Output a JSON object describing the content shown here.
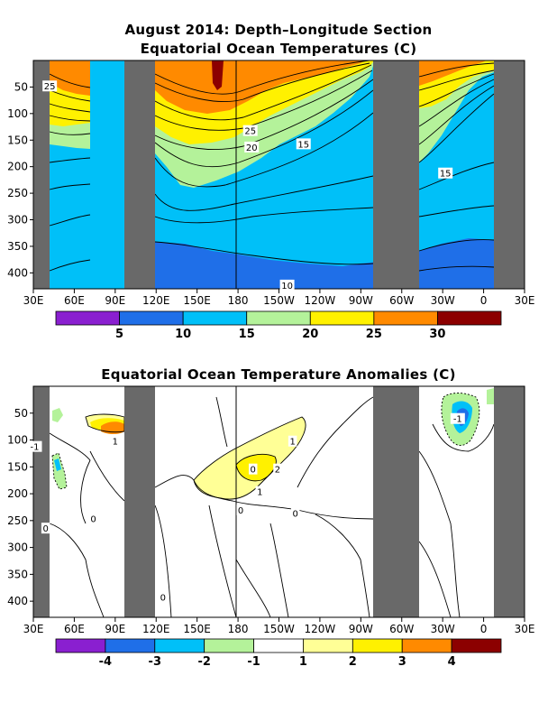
{
  "chart_data": [
    {
      "type": "heatmap",
      "title": "August 2014: Depth–Longitude Section",
      "subtitle": "Equatorial Ocean Temperatures (C)",
      "x_ticks": [
        "30E",
        "60E",
        "90E",
        "120E",
        "150E",
        "180",
        "150W",
        "120W",
        "90W",
        "60W",
        "30W",
        "0",
        "30E"
      ],
      "y_ticks": [
        "50",
        "100",
        "150",
        "200",
        "250",
        "300",
        "350",
        "400"
      ],
      "xlim": [
        30,
        390
      ],
      "ylim": [
        0,
        430
      ],
      "land_masks_lon": [
        [
          30,
          43
        ],
        [
          100,
          125
        ],
        [
          280,
          318
        ],
        [
          360,
          390
        ]
      ],
      "colorbar": {
        "colors": [
          "#8a1fd0",
          "#1f6fe8",
          "#00c0f8",
          "#b4f29a",
          "#fff100",
          "#ff8a00",
          "#8c0000"
        ],
        "labels": [
          "5",
          "10",
          "15",
          "20",
          "25",
          "30"
        ]
      },
      "contour_labels": [
        {
          "text": "25",
          "lon": 42,
          "depth": 48
        },
        {
          "text": "25",
          "lon": 189,
          "depth": 132
        },
        {
          "text": "20",
          "lon": 190,
          "depth": 163
        },
        {
          "text": "15",
          "lon": 228,
          "depth": 157
        },
        {
          "text": "15",
          "lon": 332,
          "depth": 212
        },
        {
          "text": "10",
          "lon": 216,
          "depth": 423
        }
      ]
    },
    {
      "type": "heatmap",
      "title": "Equatorial Ocean Temperature Anomalies (C)",
      "x_ticks": [
        "30E",
        "60E",
        "90E",
        "120E",
        "150E",
        "180",
        "150W",
        "120W",
        "90W",
        "60W",
        "30W",
        "0",
        "30E"
      ],
      "y_ticks": [
        "50",
        "100",
        "150",
        "200",
        "250",
        "300",
        "350",
        "400"
      ],
      "xlim": [
        30,
        390
      ],
      "ylim": [
        0,
        430
      ],
      "land_masks_lon": [
        [
          30,
          43
        ],
        [
          100,
          125
        ],
        [
          280,
          318
        ],
        [
          360,
          390
        ]
      ],
      "colorbar": {
        "colors": [
          "#8a1fd0",
          "#1f6fe8",
          "#00c0f8",
          "#b4f29a",
          "#ffffff",
          "#ffff96",
          "#fff100",
          "#ff8a00",
          "#8c0000"
        ],
        "labels": [
          "-4",
          "-3",
          "-2",
          "-1",
          "1",
          "2",
          "3",
          "4"
        ]
      },
      "contour_labels": [
        {
          "text": "1",
          "lon": 90,
          "depth": 102
        },
        {
          "text": "-1",
          "lon": 31,
          "depth": 112
        },
        {
          "text": "0",
          "lon": 74,
          "depth": 246
        },
        {
          "text": "0",
          "lon": 39,
          "depth": 264
        },
        {
          "text": "1",
          "lon": 220,
          "depth": 102
        },
        {
          "text": "2",
          "lon": 209,
          "depth": 154
        },
        {
          "text": "0",
          "lon": 191,
          "depth": 154
        },
        {
          "text": "1",
          "lon": 196,
          "depth": 196
        },
        {
          "text": "0",
          "lon": 182,
          "depth": 230
        },
        {
          "text": "0",
          "lon": 222,
          "depth": 236
        },
        {
          "text": "-1",
          "lon": 341,
          "depth": 60
        },
        {
          "text": "0",
          "lon": 125,
          "depth": 392
        }
      ]
    }
  ]
}
